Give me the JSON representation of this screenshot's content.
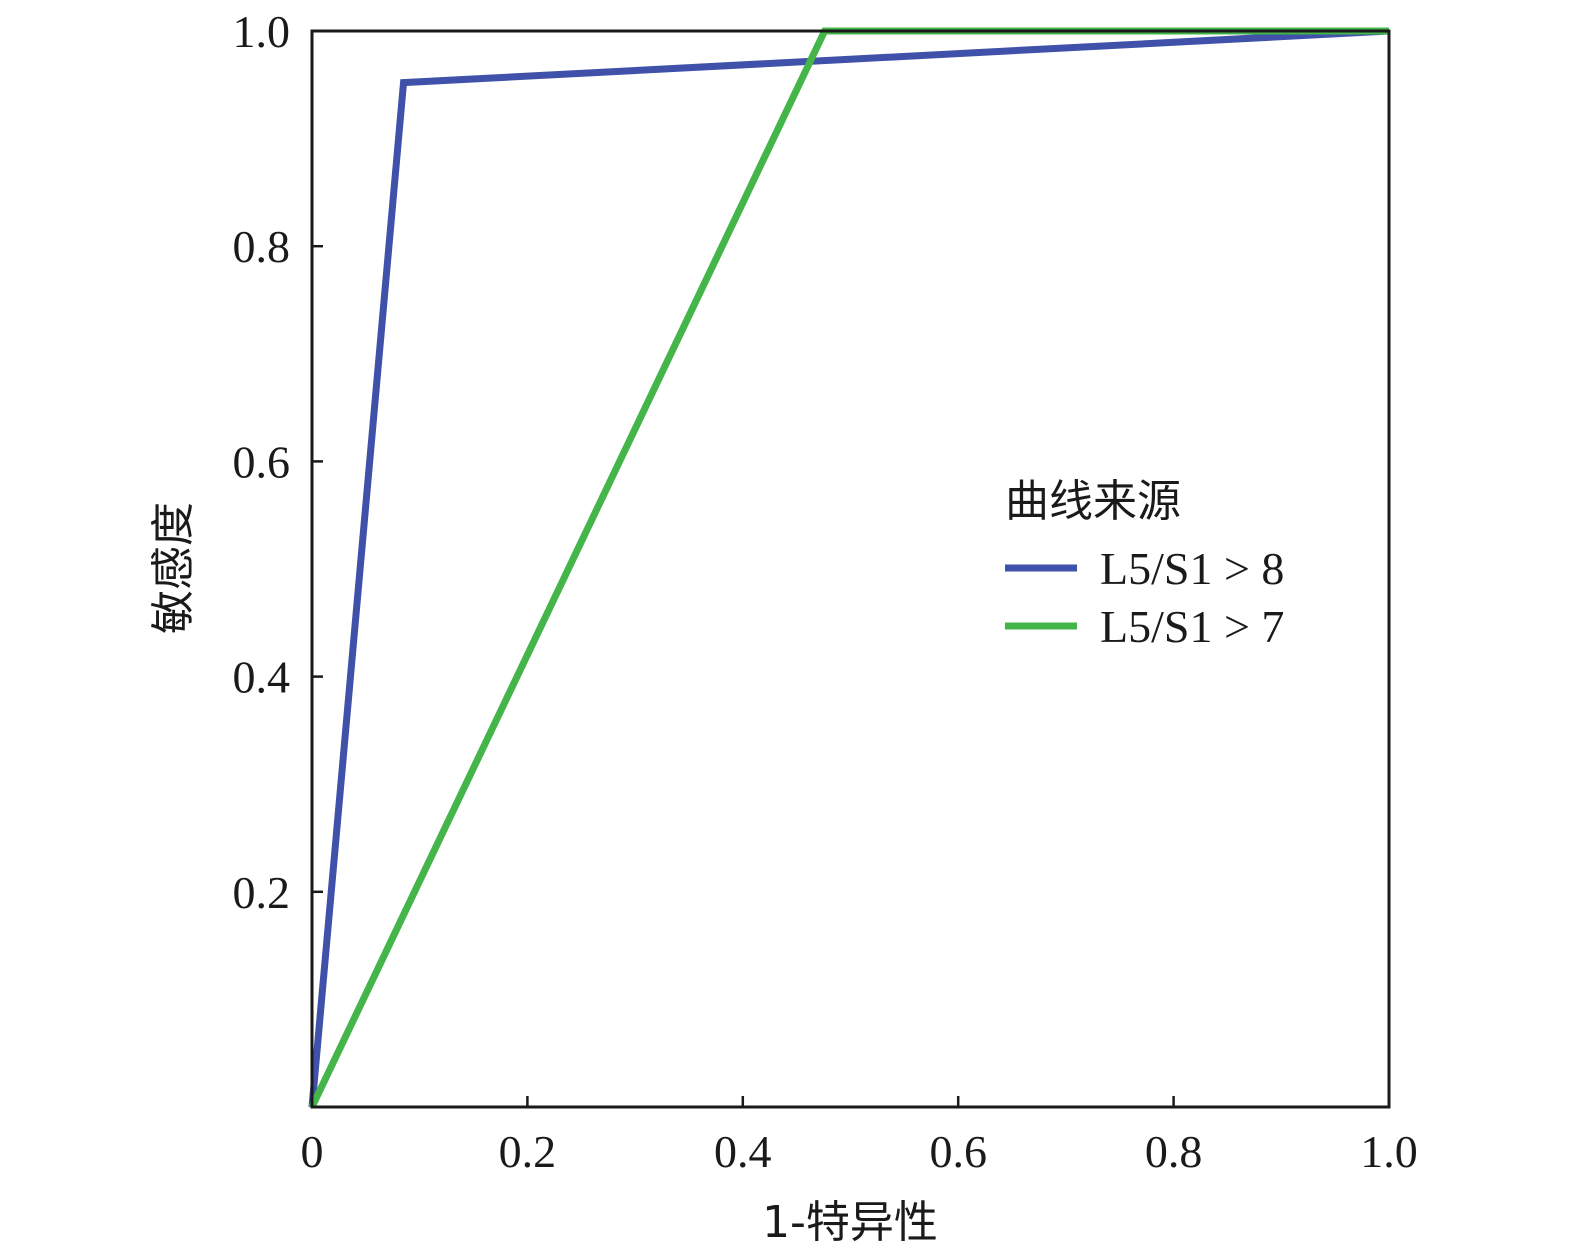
{
  "chart_data": {
    "type": "line",
    "title": "",
    "xlabel": "1-特异性",
    "ylabel": "敏感度",
    "xlim": [
      0,
      1
    ],
    "ylim": [
      0,
      1
    ],
    "x_ticks": [
      {
        "value": 0,
        "label": "0"
      },
      {
        "value": 0.2,
        "label": "0.2"
      },
      {
        "value": 0.4,
        "label": "0.4"
      },
      {
        "value": 0.6,
        "label": "0.6"
      },
      {
        "value": 0.8,
        "label": "0.8"
      },
      {
        "value": 1.0,
        "label": "1.0"
      }
    ],
    "y_ticks": [
      {
        "value": 0.2,
        "label": "0.2"
      },
      {
        "value": 0.4,
        "label": "0.4"
      },
      {
        "value": 0.6,
        "label": "0.6"
      },
      {
        "value": 0.8,
        "label": "0.8"
      },
      {
        "value": 1.0,
        "label": "1.0"
      }
    ],
    "grid": false,
    "legend": {
      "title": "曲线来源",
      "placement": "right"
    },
    "series": [
      {
        "name": "L5/S1 > 8",
        "color": "#3f51a8",
        "x": [
          0,
          0.085,
          1.0
        ],
        "y": [
          0,
          0.952,
          1.0
        ]
      },
      {
        "name": "L5/S1 > 7",
        "color": "#44b549",
        "x": [
          0,
          0.476,
          1.0
        ],
        "y": [
          0,
          1.0,
          1.0
        ]
      }
    ]
  }
}
